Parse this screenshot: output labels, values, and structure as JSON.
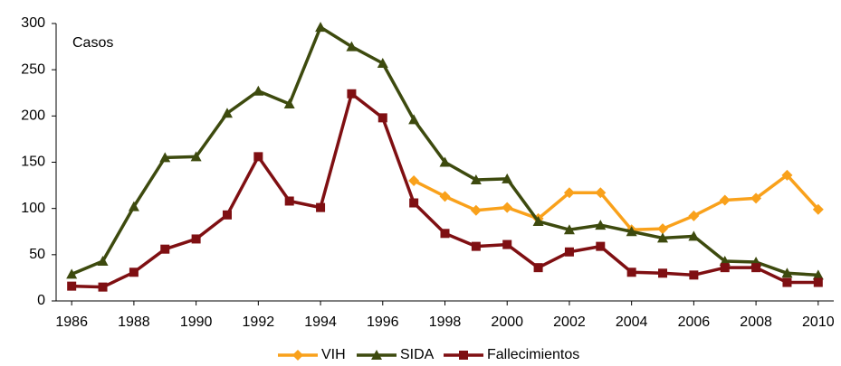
{
  "chart_data": {
    "type": "line",
    "annotation": "Casos",
    "x": [
      1986,
      1987,
      1988,
      1989,
      1990,
      1991,
      1992,
      1993,
      1994,
      1995,
      1996,
      1997,
      1998,
      1999,
      2000,
      2001,
      2002,
      2003,
      2004,
      2005,
      2006,
      2007,
      2008,
      2009,
      2010
    ],
    "series": [
      {
        "name": "VIH",
        "color": "#f9a11b",
        "marker": "diamond",
        "values": [
          null,
          null,
          null,
          null,
          null,
          null,
          null,
          null,
          null,
          null,
          null,
          130,
          113,
          98,
          101,
          89,
          117,
          117,
          77,
          78,
          92,
          109,
          111,
          136,
          99
        ]
      },
      {
        "name": "SIDA",
        "color": "#3d4a0e",
        "marker": "triangle",
        "values": [
          29,
          43,
          102,
          155,
          156,
          203,
          227,
          213,
          296,
          275,
          257,
          196,
          150,
          131,
          132,
          86,
          77,
          82,
          75,
          68,
          70,
          43,
          42,
          30,
          28
        ]
      },
      {
        "name": "Fallecimientos",
        "color": "#7f0f12",
        "marker": "square",
        "values": [
          16,
          15,
          31,
          56,
          67,
          93,
          156,
          108,
          101,
          224,
          198,
          106,
          73,
          59,
          61,
          36,
          53,
          59,
          31,
          30,
          28,
          36,
          36,
          20,
          20
        ]
      }
    ],
    "xlim": [
      1985.5,
      2010.5
    ],
    "xticks": [
      1986,
      1988,
      1990,
      1992,
      1994,
      1996,
      1998,
      2000,
      2002,
      2004,
      2006,
      2008,
      2010
    ],
    "ylim": [
      0,
      300
    ],
    "yticks": [
      0,
      50,
      100,
      150,
      200,
      250,
      300
    ],
    "grid": false,
    "legend": "bottom"
  }
}
